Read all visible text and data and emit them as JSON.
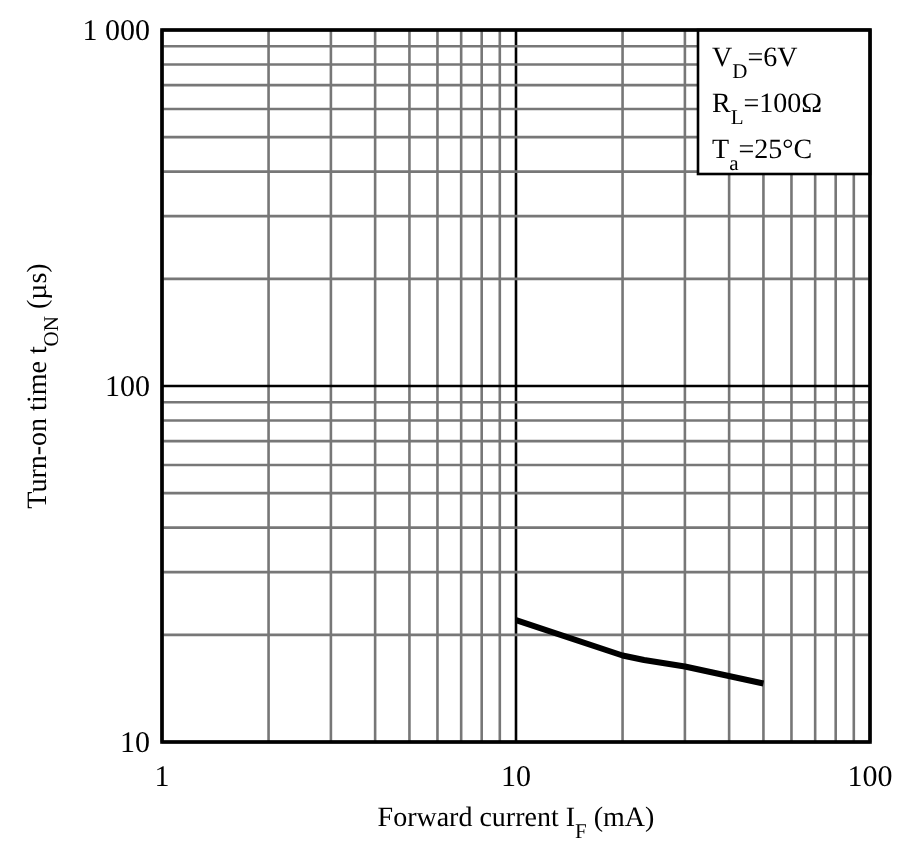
{
  "chart_data": {
    "type": "line",
    "xlabel": "Forward current I$_{F}$ (mA)",
    "ylabel": "Turn-on time t$_{ON}$ (µs)",
    "x": [
      10,
      20,
      23,
      30,
      50
    ],
    "series": [
      {
        "color": "#000000",
        "values": [
          22,
          17.5,
          17,
          16.3,
          14.6
        ]
      }
    ],
    "log": "xy",
    "xlim": [
      1,
      100
    ],
    "ylim": [
      10,
      1000
    ],
    "xticks": [
      1,
      {
        "value": 2,
        "label": null
      },
      {
        "value": 3,
        "label": null
      },
      {
        "value": 4,
        "label": null
      },
      {
        "value": 5,
        "label": null
      },
      {
        "value": 6,
        "label": null
      },
      {
        "value": 7,
        "label": null
      },
      {
        "value": 8,
        "label": null
      },
      {
        "value": 9,
        "label": null
      },
      10,
      {
        "value": 20,
        "label": null
      },
      {
        "value": 30,
        "label": null
      },
      {
        "value": 40,
        "label": null
      },
      {
        "value": 50,
        "label": null
      },
      {
        "value": 60,
        "label": null
      },
      {
        "value": 70,
        "label": null
      },
      {
        "value": 80,
        "label": null
      },
      {
        "value": 90,
        "label": null
      },
      100
    ],
    "yticks": [
      10,
      {
        "value": 20,
        "label": null
      },
      {
        "value": 30,
        "label": null
      },
      {
        "value": 40,
        "label": null
      },
      {
        "value": 50,
        "label": null
      },
      {
        "value": 60,
        "label": null
      },
      {
        "value": 70,
        "label": null
      },
      {
        "value": 80,
        "label": null
      },
      {
        "value": 90,
        "label": null
      },
      100,
      {
        "value": 200,
        "label": null
      },
      {
        "value": 300,
        "label": null
      },
      {
        "value": 400,
        "label": null
      },
      {
        "value": 500,
        "label": null
      },
      {
        "value": 600,
        "label": null
      },
      {
        "value": 700,
        "label": null
      },
      {
        "value": 800,
        "label": null
      },
      {
        "value": 900,
        "label": null
      },
      {
        "value": 1000,
        "label": "1 000"
      }
    ],
    "grid": true,
    "marker": "none",
    "line_style": "solid",
    "annotations": [
      "V$_{D}$=6V",
      "R$_{L}$=100Ω",
      "T$_{a}$=25°C"
    ]
  }
}
